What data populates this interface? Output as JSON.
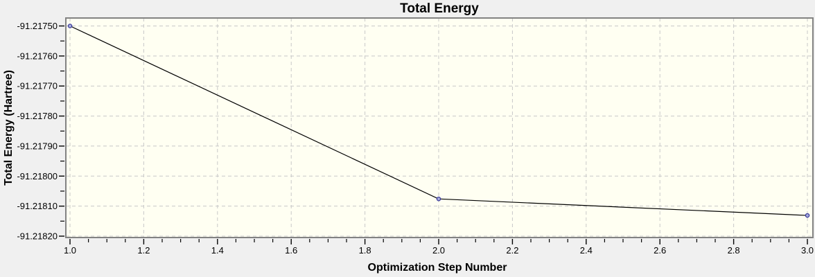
{
  "window": {
    "background_color": "#f0f0f0"
  },
  "chart_data": {
    "type": "line",
    "title": "Total Energy",
    "xlabel": "Optimization Step Number",
    "ylabel": "Total Energy (Hartree)",
    "series": [
      {
        "name": "Total Energy",
        "x": [
          1.0,
          2.0,
          3.0
        ],
        "y": [
          -91.2175,
          -91.218076,
          -91.218131
        ]
      }
    ],
    "xlim": [
      0.9887,
      3.015
    ],
    "ylim": [
      -91.2182046,
      -91.2174735
    ],
    "x_ticks": {
      "values": [
        1.0,
        1.2,
        1.4,
        1.6,
        1.8,
        2.0,
        2.2,
        2.4,
        2.6,
        2.8,
        3.0
      ],
      "labels": [
        "1.0",
        "1.2",
        "1.4",
        "1.6",
        "1.8",
        "2.0",
        "2.2",
        "2.4",
        "2.6",
        "2.8",
        "3.0"
      ],
      "minor_step": 0.05
    },
    "y_ticks": {
      "values": [
        -91.2175,
        -91.2176,
        -91.2177,
        -91.2178,
        -91.2179,
        -91.218,
        -91.2181,
        -91.2182
      ],
      "labels": [
        "-91.21750",
        "-91.21760",
        "-91.21770",
        "-91.21780",
        "-91.21790",
        "-91.21800",
        "-91.21810",
        "-91.21820"
      ],
      "minor_step": 5e-05
    },
    "grid": {
      "show": true,
      "style": "dashed",
      "on": "major"
    },
    "legend": {
      "show": false
    },
    "colors": {
      "plot_background": "#fffff2",
      "outer_background": "#f0f0f0",
      "grid_line": "#c8c8c8",
      "frame": "#828282",
      "series_line": "#000000",
      "marker_stroke": "#39399b",
      "marker_fill": "#a9aedd",
      "tick": "#000000",
      "text": "#000000"
    }
  }
}
